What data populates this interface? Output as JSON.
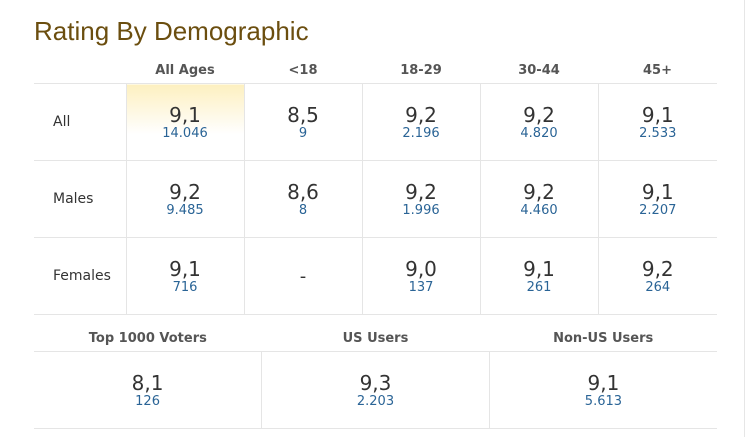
{
  "title": "Rating By Demographic",
  "demographics": {
    "headers": [
      "All Ages",
      "<18",
      "18-29",
      "30-44",
      "45+"
    ],
    "rows": [
      {
        "label": "All",
        "cells": [
          {
            "rating": "9,1",
            "votes": "14.046"
          },
          {
            "rating": "8,5",
            "votes": "9"
          },
          {
            "rating": "9,2",
            "votes": "2.196"
          },
          {
            "rating": "9,2",
            "votes": "4.820"
          },
          {
            "rating": "9,1",
            "votes": "2.533"
          }
        ]
      },
      {
        "label": "Males",
        "cells": [
          {
            "rating": "9,2",
            "votes": "9.485"
          },
          {
            "rating": "8,6",
            "votes": "8"
          },
          {
            "rating": "9,2",
            "votes": "1.996"
          },
          {
            "rating": "9,2",
            "votes": "4.460"
          },
          {
            "rating": "9,1",
            "votes": "2.207"
          }
        ]
      },
      {
        "label": "Females",
        "cells": [
          {
            "rating": "9,1",
            "votes": "716"
          },
          {
            "empty": "-"
          },
          {
            "rating": "9,0",
            "votes": "137"
          },
          {
            "rating": "9,1",
            "votes": "261"
          },
          {
            "rating": "9,2",
            "votes": "264"
          }
        ]
      }
    ]
  },
  "other_groups": {
    "headers": [
      "Top 1000 Voters",
      "US Users",
      "Non-US Users"
    ],
    "cells": [
      {
        "rating": "8,1",
        "votes": "126"
      },
      {
        "rating": "9,3",
        "votes": "2.203"
      },
      {
        "rating": "9,1",
        "votes": "5.613"
      }
    ]
  },
  "colors": {
    "title": "#6b4e0f",
    "votes_link": "#2a6496",
    "highlight": "#fdf0c0",
    "border": "#e5e5e5"
  }
}
